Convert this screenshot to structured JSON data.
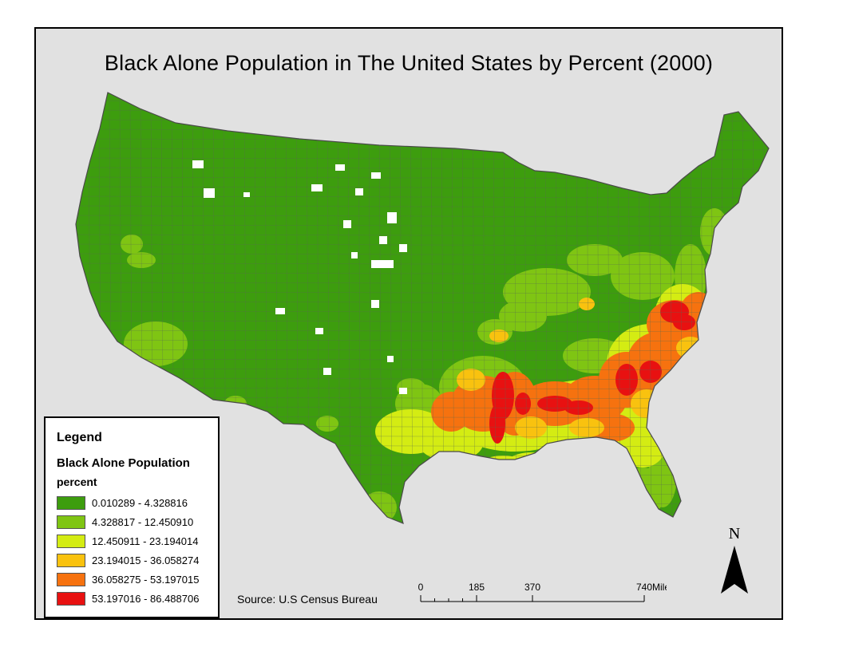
{
  "title": "Black Alone Population in The United States by Percent (2000)",
  "legend": {
    "heading": "Legend",
    "layer": "Black Alone Population",
    "field": "percent",
    "classes": [
      {
        "label": "0.010289 - 4.328816",
        "color": "#3d9d0e"
      },
      {
        "label": "4.328817 - 12.450910",
        "color": "#7fc513"
      },
      {
        "label": "12.450911 - 23.194014",
        "color": "#d4ec13"
      },
      {
        "label": "23.194015 - 36.058274",
        "color": "#f9c20f"
      },
      {
        "label": "36.058275 - 53.197015",
        "color": "#f6720f"
      },
      {
        "label": "53.197016 - 86.488706",
        "color": "#e81111"
      }
    ]
  },
  "source": "Source: U.S Census Bureau",
  "scale_bar": {
    "ticks": [
      "0",
      "185",
      "370",
      "740"
    ],
    "unit": "Miles"
  },
  "north_arrow": {
    "label": "N",
    "icon": "north-arrow-icon"
  },
  "colors": {
    "background": "#e1e1e1",
    "border": "#000000",
    "no_data": "#ffffff"
  }
}
